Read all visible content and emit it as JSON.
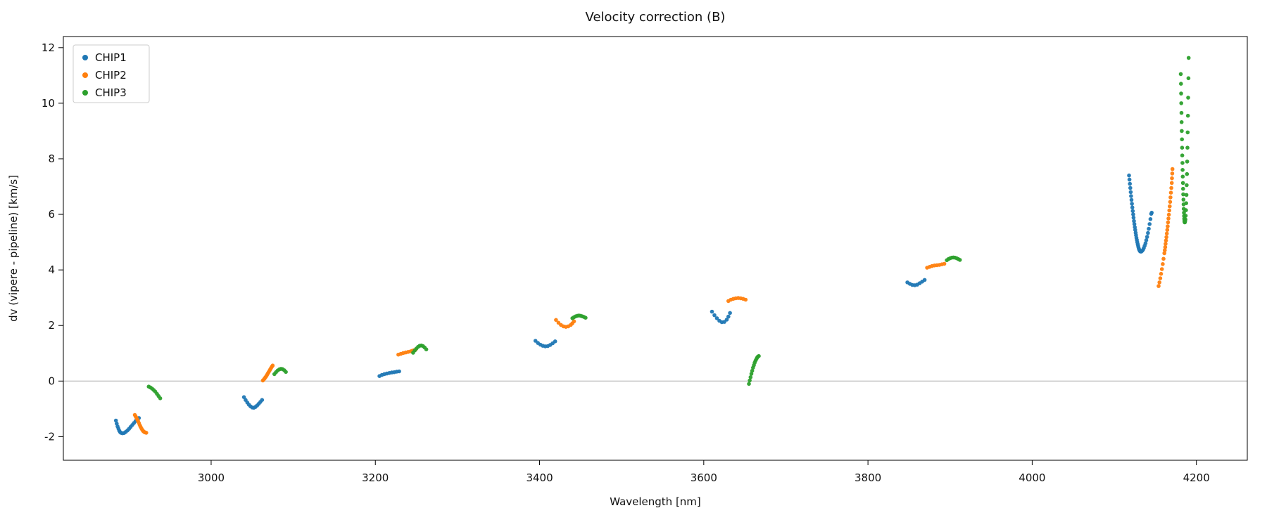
{
  "figure": {
    "title": "Velocity correction (B)"
  },
  "chart_data": {
    "type": "scatter",
    "title": "Velocity correction (B)",
    "xlabel": "Wavelength [nm]",
    "ylabel": "dv (vipere - pipeline) [km/s]",
    "xlim": [
      2820,
      4262
    ],
    "ylim": [
      -2.85,
      12.4
    ],
    "xticks": [
      3000,
      3200,
      3400,
      3600,
      3800,
      4000,
      4200
    ],
    "yticks": [
      -2,
      0,
      2,
      4,
      6,
      8,
      10,
      12
    ],
    "grid": false,
    "marker_size": 2.8,
    "hlines": [
      {
        "y": 0,
        "color": "#aaaaaa"
      }
    ],
    "legend": {
      "position": "upper left",
      "entries": [
        "CHIP1",
        "CHIP2",
        "CHIP3"
      ]
    },
    "series": [
      {
        "name": "CHIP1",
        "color": "#1f77b4",
        "points": [
          [
            2884,
            -1.42
          ],
          [
            2885,
            -1.53
          ],
          [
            2886,
            -1.63
          ],
          [
            2887,
            -1.71
          ],
          [
            2888,
            -1.78
          ],
          [
            2889,
            -1.83
          ],
          [
            2890,
            -1.86
          ],
          [
            2892,
            -1.88
          ],
          [
            2894,
            -1.87
          ],
          [
            2896,
            -1.83
          ],
          [
            2898,
            -1.78
          ],
          [
            2900,
            -1.72
          ],
          [
            2902,
            -1.65
          ],
          [
            2904,
            -1.58
          ],
          [
            2906,
            -1.51
          ],
          [
            2908,
            -1.44
          ],
          [
            2910,
            -1.38
          ],
          [
            2912,
            -1.33
          ],
          [
            3040,
            -0.58
          ],
          [
            3042,
            -0.68
          ],
          [
            3044,
            -0.77
          ],
          [
            3046,
            -0.85
          ],
          [
            3048,
            -0.91
          ],
          [
            3050,
            -0.95
          ],
          [
            3052,
            -0.96
          ],
          [
            3054,
            -0.93
          ],
          [
            3056,
            -0.88
          ],
          [
            3058,
            -0.82
          ],
          [
            3060,
            -0.75
          ],
          [
            3062,
            -0.68
          ],
          [
            3205,
            0.18
          ],
          [
            3208,
            0.22
          ],
          [
            3211,
            0.25
          ],
          [
            3214,
            0.27
          ],
          [
            3217,
            0.29
          ],
          [
            3220,
            0.31
          ],
          [
            3223,
            0.32
          ],
          [
            3226,
            0.34
          ],
          [
            3229,
            0.35
          ],
          [
            3395,
            1.45
          ],
          [
            3398,
            1.37
          ],
          [
            3401,
            1.31
          ],
          [
            3404,
            1.27
          ],
          [
            3407,
            1.25
          ],
          [
            3410,
            1.26
          ],
          [
            3413,
            1.3
          ],
          [
            3416,
            1.36
          ],
          [
            3419,
            1.43
          ],
          [
            3610,
            2.5
          ],
          [
            3613,
            2.37
          ],
          [
            3616,
            2.26
          ],
          [
            3619,
            2.17
          ],
          [
            3622,
            2.12
          ],
          [
            3625,
            2.13
          ],
          [
            3628,
            2.21
          ],
          [
            3630,
            2.32
          ],
          [
            3632,
            2.45
          ],
          [
            3848,
            3.55
          ],
          [
            3851,
            3.5
          ],
          [
            3854,
            3.46
          ],
          [
            3857,
            3.45
          ],
          [
            3860,
            3.47
          ],
          [
            3863,
            3.52
          ],
          [
            3866,
            3.58
          ],
          [
            3869,
            3.64
          ],
          [
            4118,
            7.4
          ],
          [
            4118.5,
            7.25
          ],
          [
            4119,
            7.1
          ],
          [
            4119.5,
            6.95
          ],
          [
            4120,
            6.8
          ],
          [
            4120.5,
            6.66
          ],
          [
            4121,
            6.52
          ],
          [
            4121.5,
            6.38
          ],
          [
            4122,
            6.25
          ],
          [
            4122.5,
            6.12
          ],
          [
            4123,
            6.0
          ],
          [
            4123.5,
            5.88
          ],
          [
            4124,
            5.76
          ],
          [
            4124.5,
            5.65
          ],
          [
            4125,
            5.54
          ],
          [
            4125.5,
            5.44
          ],
          [
            4126,
            5.34
          ],
          [
            4126.5,
            5.25
          ],
          [
            4127,
            5.16
          ],
          [
            4127.5,
            5.08
          ],
          [
            4128,
            5.0
          ],
          [
            4128.5,
            4.93
          ],
          [
            4129,
            4.87
          ],
          [
            4129.5,
            4.81
          ],
          [
            4130,
            4.76
          ],
          [
            4130.5,
            4.72
          ],
          [
            4131,
            4.69
          ],
          [
            4131.5,
            4.67
          ],
          [
            4132,
            4.66
          ],
          [
            4133,
            4.66
          ],
          [
            4134,
            4.69
          ],
          [
            4135,
            4.73
          ],
          [
            4136,
            4.79
          ],
          [
            4137,
            4.87
          ],
          [
            4138,
            4.96
          ],
          [
            4139,
            5.07
          ],
          [
            4140,
            5.19
          ],
          [
            4141,
            5.33
          ],
          [
            4142,
            5.48
          ],
          [
            4143,
            5.65
          ],
          [
            4144,
            5.83
          ],
          [
            4145,
            6.02
          ],
          [
            4145.6,
            6.06
          ]
        ]
      },
      {
        "name": "CHIP2",
        "color": "#ff7f0e",
        "points": [
          [
            2907,
            -1.22
          ],
          [
            2908,
            -1.27
          ],
          [
            2909,
            -1.32
          ],
          [
            2910,
            -1.38
          ],
          [
            2911,
            -1.44
          ],
          [
            2912,
            -1.51
          ],
          [
            2913,
            -1.58
          ],
          [
            2914,
            -1.64
          ],
          [
            2915,
            -1.7
          ],
          [
            2916,
            -1.75
          ],
          [
            2917,
            -1.79
          ],
          [
            2918,
            -1.82
          ],
          [
            2919,
            -1.84
          ],
          [
            2920,
            -1.85
          ],
          [
            2921,
            -1.86
          ],
          [
            3063,
            0.02
          ],
          [
            3064,
            0.05
          ],
          [
            3065,
            0.09
          ],
          [
            3066,
            0.13
          ],
          [
            3067,
            0.17
          ],
          [
            3068,
            0.22
          ],
          [
            3069,
            0.27
          ],
          [
            3070,
            0.32
          ],
          [
            3071,
            0.37
          ],
          [
            3072,
            0.42
          ],
          [
            3073,
            0.47
          ],
          [
            3074,
            0.52
          ],
          [
            3075,
            0.56
          ],
          [
            3228,
            0.95
          ],
          [
            3231,
            0.98
          ],
          [
            3234,
            1.01
          ],
          [
            3237,
            1.03
          ],
          [
            3240,
            1.05
          ],
          [
            3243,
            1.07
          ],
          [
            3245,
            1.09
          ],
          [
            3247,
            1.11
          ],
          [
            3249,
            1.13
          ],
          [
            3420,
            2.2
          ],
          [
            3423,
            2.1
          ],
          [
            3426,
            2.02
          ],
          [
            3429,
            1.97
          ],
          [
            3432,
            1.95
          ],
          [
            3435,
            1.97
          ],
          [
            3438,
            2.02
          ],
          [
            3440,
            2.08
          ],
          [
            3442,
            2.15
          ],
          [
            3630,
            2.88
          ],
          [
            3633,
            2.93
          ],
          [
            3636,
            2.96
          ],
          [
            3639,
            2.98
          ],
          [
            3642,
            2.99
          ],
          [
            3645,
            2.98
          ],
          [
            3648,
            2.96
          ],
          [
            3651,
            2.93
          ],
          [
            3872,
            4.08
          ],
          [
            3875,
            4.11
          ],
          [
            3878,
            4.14
          ],
          [
            3881,
            4.16
          ],
          [
            3884,
            4.17
          ],
          [
            3887,
            4.18
          ],
          [
            3890,
            4.2
          ],
          [
            3893,
            4.22
          ],
          [
            4154,
            3.42
          ],
          [
            4155,
            3.55
          ],
          [
            4156,
            3.7
          ],
          [
            4157,
            3.86
          ],
          [
            4158,
            4.03
          ],
          [
            4159,
            4.21
          ],
          [
            4160,
            4.4
          ],
          [
            4161,
            4.6
          ],
          [
            4161.5,
            4.71
          ],
          [
            4162,
            4.82
          ],
          [
            4162.5,
            4.94
          ],
          [
            4163,
            5.06
          ],
          [
            4163.5,
            5.18
          ],
          [
            4164,
            5.31
          ],
          [
            4164.5,
            5.44
          ],
          [
            4165,
            5.57
          ],
          [
            4165.5,
            5.71
          ],
          [
            4166,
            5.85
          ],
          [
            4166.5,
            5.99
          ],
          [
            4167,
            6.14
          ],
          [
            4167.5,
            6.29
          ],
          [
            4168,
            6.45
          ],
          [
            4168.5,
            6.61
          ],
          [
            4169,
            6.78
          ],
          [
            4169.5,
            6.95
          ],
          [
            4170,
            7.13
          ],
          [
            4170.3,
            7.3
          ],
          [
            4170.6,
            7.47
          ],
          [
            4170.9,
            7.63
          ]
        ]
      },
      {
        "name": "CHIP3",
        "color": "#2ca02c",
        "points": [
          [
            2924,
            -0.2
          ],
          [
            2926,
            -0.23
          ],
          [
            2928,
            -0.27
          ],
          [
            2930,
            -0.32
          ],
          [
            2932,
            -0.38
          ],
          [
            2934,
            -0.46
          ],
          [
            2936,
            -0.54
          ],
          [
            2938,
            -0.62
          ],
          [
            3077,
            0.25
          ],
          [
            3079,
            0.32
          ],
          [
            3081,
            0.38
          ],
          [
            3083,
            0.42
          ],
          [
            3085,
            0.44
          ],
          [
            3087,
            0.43
          ],
          [
            3089,
            0.39
          ],
          [
            3091,
            0.33
          ],
          [
            3246,
            1.02
          ],
          [
            3248,
            1.1
          ],
          [
            3250,
            1.17
          ],
          [
            3252,
            1.23
          ],
          [
            3254,
            1.27
          ],
          [
            3256,
            1.28
          ],
          [
            3258,
            1.26
          ],
          [
            3260,
            1.21
          ],
          [
            3262,
            1.14
          ],
          [
            3440,
            2.26
          ],
          [
            3442,
            2.3
          ],
          [
            3444,
            2.33
          ],
          [
            3446,
            2.35
          ],
          [
            3448,
            2.36
          ],
          [
            3450,
            2.35
          ],
          [
            3452,
            2.33
          ],
          [
            3454,
            2.31
          ],
          [
            3456,
            2.28
          ],
          [
            3655,
            -0.1
          ],
          [
            3656,
            0.02
          ],
          [
            3657,
            0.14
          ],
          [
            3658,
            0.26
          ],
          [
            3659,
            0.37
          ],
          [
            3660,
            0.48
          ],
          [
            3661,
            0.57
          ],
          [
            3662,
            0.66
          ],
          [
            3663,
            0.73
          ],
          [
            3664,
            0.79
          ],
          [
            3665,
            0.84
          ],
          [
            3666,
            0.88
          ],
          [
            3667,
            0.9
          ],
          [
            3896,
            4.35
          ],
          [
            3898,
            4.39
          ],
          [
            3900,
            4.42
          ],
          [
            3902,
            4.44
          ],
          [
            3904,
            4.45
          ],
          [
            3906,
            4.44
          ],
          [
            3908,
            4.42
          ],
          [
            3910,
            4.39
          ],
          [
            3912,
            4.36
          ],
          [
            4181,
            11.05
          ],
          [
            4181.2,
            10.7
          ],
          [
            4181.4,
            10.35
          ],
          [
            4181.6,
            10.0
          ],
          [
            4181.8,
            9.65
          ],
          [
            4182,
            9.32
          ],
          [
            4182.2,
            9.0
          ],
          [
            4182.4,
            8.7
          ],
          [
            4182.6,
            8.4
          ],
          [
            4182.8,
            8.12
          ],
          [
            4183,
            7.85
          ],
          [
            4183.2,
            7.6
          ],
          [
            4183.4,
            7.36
          ],
          [
            4183.6,
            7.13
          ],
          [
            4183.8,
            6.92
          ],
          [
            4184,
            6.72
          ],
          [
            4184.2,
            6.53
          ],
          [
            4184.4,
            6.36
          ],
          [
            4184.6,
            6.2
          ],
          [
            4184.8,
            6.06
          ],
          [
            4185,
            5.94
          ],
          [
            4185.2,
            5.84
          ],
          [
            4185.4,
            5.77
          ],
          [
            4185.6,
            5.73
          ],
          [
            4185.8,
            5.71
          ],
          [
            4186,
            5.72
          ],
          [
            4186.3,
            5.76
          ],
          [
            4186.6,
            5.82
          ],
          [
            4187,
            5.95
          ],
          [
            4187.3,
            6.15
          ],
          [
            4187.6,
            6.4
          ],
          [
            4187.9,
            6.7
          ],
          [
            4188.2,
            7.05
          ],
          [
            4188.5,
            7.45
          ],
          [
            4188.8,
            7.9
          ],
          [
            4189.1,
            8.4
          ],
          [
            4189.4,
            8.95
          ],
          [
            4189.7,
            9.55
          ],
          [
            4190,
            10.2
          ],
          [
            4190.3,
            10.9
          ],
          [
            4190.6,
            11.63
          ]
        ]
      }
    ]
  }
}
